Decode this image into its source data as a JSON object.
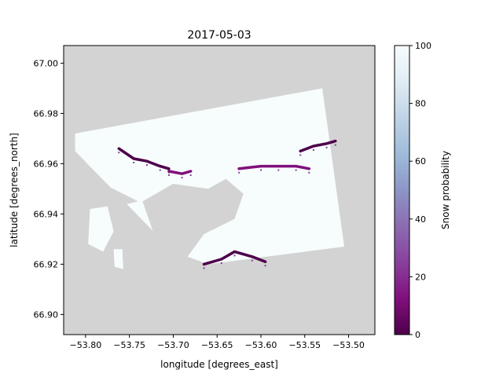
{
  "chart_data": {
    "type": "heatmap",
    "title": "2017-05-03",
    "xlabel": "longitude [degrees_east]",
    "ylabel": "latitude [degrees_north]",
    "xlim": [
      -53.825,
      -53.47
    ],
    "ylim": [
      66.892,
      67.007
    ],
    "xticks": [
      -53.8,
      -53.75,
      -53.7,
      -53.65,
      -53.6,
      -53.55,
      -53.5
    ],
    "xtick_labels": [
      "−53.80",
      "−53.75",
      "−53.70",
      "−53.65",
      "−53.60",
      "−53.55",
      "−53.50"
    ],
    "yticks": [
      66.9,
      66.92,
      66.94,
      66.96,
      66.98,
      67.0
    ],
    "ytick_labels": [
      "66.90",
      "66.92",
      "66.94",
      "66.96",
      "66.98",
      "67.00"
    ],
    "colorbar": {
      "label": "Snow probability",
      "range": [
        0,
        100
      ],
      "ticks": [
        0,
        20,
        40,
        60,
        80,
        100
      ],
      "tick_labels": [
        "0",
        "20",
        "40",
        "60",
        "80",
        "100"
      ],
      "colormap_stops": [
        "#4d004b",
        "#810f7c",
        "#88419d",
        "#8c6bb1",
        "#8c96c6",
        "#9ebcda",
        "#bfd3e6",
        "#e0ecf4",
        "#f7fcfd"
      ]
    },
    "nodata_color": "#d3d3d3",
    "scene_footprint": [
      [
        -53.812,
        66.972
      ],
      [
        -53.53,
        66.99
      ],
      [
        -53.505,
        66.927
      ],
      [
        -53.66,
        66.92
      ],
      [
        -53.7,
        66.925
      ],
      [
        -53.812,
        66.965
      ]
    ],
    "water_regions": [
      [
        [
          -53.66,
          66.95
        ],
        [
          -53.64,
          66.954
        ],
        [
          -53.62,
          66.948
        ],
        [
          -53.63,
          66.938
        ],
        [
          -53.665,
          66.932
        ],
        [
          -53.69,
          66.92
        ],
        [
          -53.72,
          66.93
        ],
        [
          -53.735,
          66.945
        ],
        [
          -53.7,
          66.952
        ]
      ],
      [
        [
          -53.812,
          66.958
        ],
        [
          -53.78,
          66.952
        ],
        [
          -53.74,
          66.945
        ],
        [
          -53.8,
          66.94
        ]
      ]
    ],
    "islands": [
      [
        [
          -53.795,
          66.942
        ],
        [
          -53.775,
          66.943
        ],
        [
          -53.768,
          66.933
        ],
        [
          -53.78,
          66.925
        ],
        [
          -53.797,
          66.928
        ]
      ],
      [
        [
          -53.768,
          66.926
        ],
        [
          -53.758,
          66.926
        ],
        [
          -53.757,
          66.918
        ],
        [
          -53.767,
          66.919
        ]
      ]
    ],
    "low_snow_streaks": [
      {
        "lon": [
          -53.762,
          -53.745,
          -53.73,
          -53.715,
          -53.705
        ],
        "lat": [
          66.966,
          66.962,
          66.961,
          66.959,
          66.958
        ],
        "value": 5
      },
      {
        "lon": [
          -53.625,
          -53.6,
          -53.58,
          -53.56,
          -53.545
        ],
        "lat": [
          66.958,
          66.959,
          66.959,
          66.959,
          66.958
        ],
        "value": 10
      },
      {
        "lon": [
          -53.555,
          -53.54,
          -53.525,
          -53.515
        ],
        "lat": [
          66.965,
          66.967,
          66.968,
          66.969
        ],
        "value": 5
      },
      {
        "lon": [
          -53.665,
          -53.645,
          -53.63,
          -53.61,
          -53.595
        ],
        "lat": [
          66.92,
          66.922,
          66.925,
          66.923,
          66.921
        ],
        "value": 5
      },
      {
        "lon": [
          -53.705,
          -53.69,
          -53.68
        ],
        "lat": [
          66.957,
          66.956,
          66.957
        ],
        "value": 15
      }
    ]
  }
}
